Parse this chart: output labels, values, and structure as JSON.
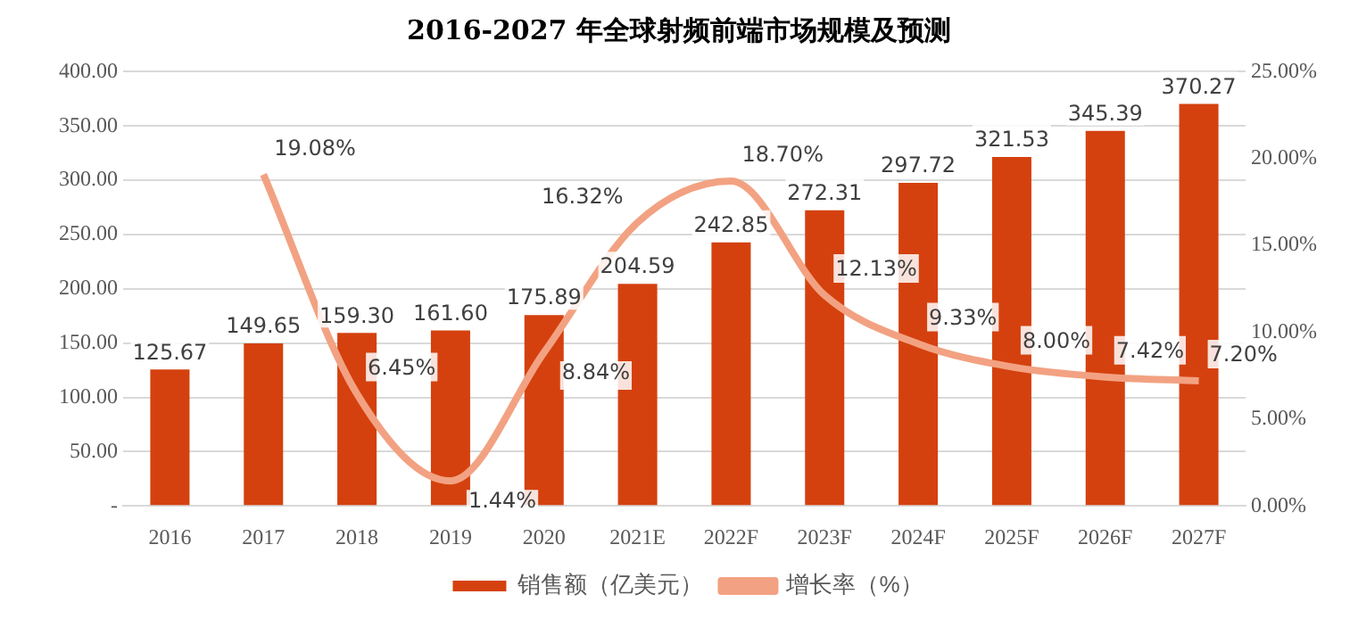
{
  "chart_data": {
    "type": "bar",
    "title": "2016-2027 年全球射频前端市场规模及预测",
    "categories": [
      "2016",
      "2017",
      "2018",
      "2019",
      "2020",
      "2021E",
      "2022F",
      "2023F",
      "2024F",
      "2025F",
      "2026F",
      "2027F"
    ],
    "series": [
      {
        "name": "销售额（亿美元）",
        "color": "#d4410f",
        "values": [
          125.67,
          149.65,
          159.3,
          161.6,
          175.89,
          204.59,
          242.85,
          272.31,
          297.72,
          321.53,
          345.39,
          370.27
        ],
        "value_labels": [
          "125.67",
          "149.65",
          "159.30",
          "161.60",
          "175.89",
          "204.59",
          "242.85",
          "272.31",
          "297.72",
          "321.53",
          "345.39",
          "370.27"
        ]
      },
      {
        "name": "增长率（%）",
        "type": "line",
        "axis": "y2",
        "color": "#f2a282",
        "values": [
          null,
          19.08,
          6.45,
          1.44,
          8.84,
          16.32,
          18.7,
          12.13,
          9.33,
          8.0,
          7.42,
          7.2
        ],
        "value_labels": [
          null,
          "19.08%",
          "6.45%",
          "1.44%",
          "8.84%",
          "16.32%",
          "18.70%",
          "12.13%",
          "9.33%",
          "8.00%",
          "7.42%",
          "7.20%"
        ]
      }
    ],
    "ylim": [
      0,
      400
    ],
    "yticks": [
      {
        "value": 0,
        "label": "-"
      },
      {
        "value": 50,
        "label": "50.00"
      },
      {
        "value": 100,
        "label": "100.00"
      },
      {
        "value": 150,
        "label": "150.00"
      },
      {
        "value": 200,
        "label": "200.00"
      },
      {
        "value": 250,
        "label": "250.00"
      },
      {
        "value": 300,
        "label": "300.00"
      },
      {
        "value": 350,
        "label": "350.00"
      },
      {
        "value": 400,
        "label": "400.00"
      }
    ],
    "y2lim": [
      0,
      25
    ],
    "y2ticks": [
      {
        "value": 0,
        "label": "0.00%"
      },
      {
        "value": 5,
        "label": "5.00%"
      },
      {
        "value": 10,
        "label": "10.00%"
      },
      {
        "value": 15,
        "label": "15.00%"
      },
      {
        "value": 20,
        "label": "20.00%"
      },
      {
        "value": 25,
        "label": "25.00%"
      }
    ],
    "grid": "y",
    "legend": "bottom",
    "marker": "none"
  }
}
